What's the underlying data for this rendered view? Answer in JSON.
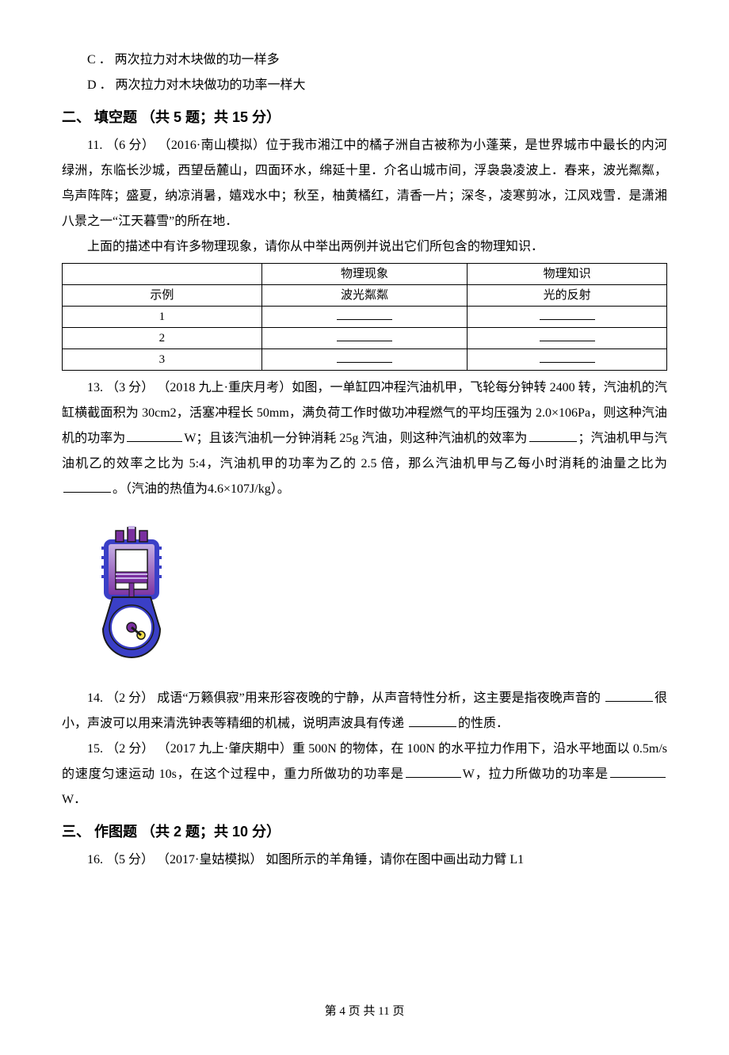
{
  "options": {
    "c": "C ． 两次拉力对木块做的功一样多",
    "d": "D ． 两次拉力对木块做功的功率一样大"
  },
  "section2": {
    "title": "二、 填空题 （共 5 题；共 15 分）"
  },
  "q11": {
    "lead": "11. （6 分） （2016·南山模拟）位于我市湘江中的橘子洲自古被称为小蓬莱，是世界城市中最长的内河绿洲，东临长沙城，西望岳麓山，四面环水，绵延十里．介名山城市间，浮袅袅凌波上．春来，波光粼粼，鸟声阵阵；盛夏，纳凉消暑，嬉戏水中；秋至，柚黄橘红，清香一片；深冬，凌寒剪冰，江风戏雪．是潇湘八景之一“江天暮雪”的所在地．",
    "sub": "上面的描述中有许多物理现象，请你从中举出两例并说出它们所包含的物理知识．",
    "headers": {
      "col1": "",
      "col2": "物理现象",
      "col3": "物理知识"
    },
    "example_label": "示例",
    "example_phenomenon": "波光粼粼",
    "example_knowledge": "光的反射",
    "rows": [
      "1",
      "2",
      "3"
    ]
  },
  "q13": {
    "p1a": "13. （3 分） （2018 九上·重庆月考）如图，一单缸四冲程汽油机甲，飞轮每分钟转 2400 转，汽油机的汽缸横截面积为 30cm2，活塞冲程长 50mm，满负荷工作时做功冲程燃气的平均压强为 2.0×106Pa，则这种汽油机的功率为",
    "p1b": "W；且该汽油机一分钟消耗 25g 汽油，则这种汽油机的效率为",
    "p1c": "；汽油机甲与汽油机乙的效率之比为 5:4，汽油机甲的功率为乙的 2.5 倍，那么汽油机甲与乙每小时消耗的油量之比为",
    "p1d": "。（汽油的热值为4.6×107J/kg）。"
  },
  "engine": {
    "body": "#3a3fc7",
    "band": "#7a2fa0",
    "light": "#c9b6e8",
    "outline": "#1a1a1a",
    "width": 120,
    "height": 170
  },
  "q14": {
    "a": "14. （2 分）  成语“万籁俱寂”用来形容夜晚的宁静，从声音特性分析，这主要是指夜晚声音的  ",
    "b": "很小，声波可以用来清洗钟表等精细的机械，说明声波具有传递  ",
    "c": "的性质．"
  },
  "q15": {
    "a": "15. （2 分） （2017 九上·肇庆期中）重 500N 的物体，在 100N 的水平拉力作用下，沿水平地面以 0.5m/s 的速度匀速运动 10s，在这个过程中，重力所做功的功率是",
    "b": "W，拉力所做功的功率是",
    "c": "W．"
  },
  "section3": {
    "title": "三、 作图题 （共 2 题；共 10 分）"
  },
  "q16": {
    "text": "16. （5 分） （2017·皇姑模拟） 如图所示的羊角锤，请你在图中画出动力臂 L1"
  },
  "footer": {
    "text": "第 4 页 共 11 页"
  }
}
